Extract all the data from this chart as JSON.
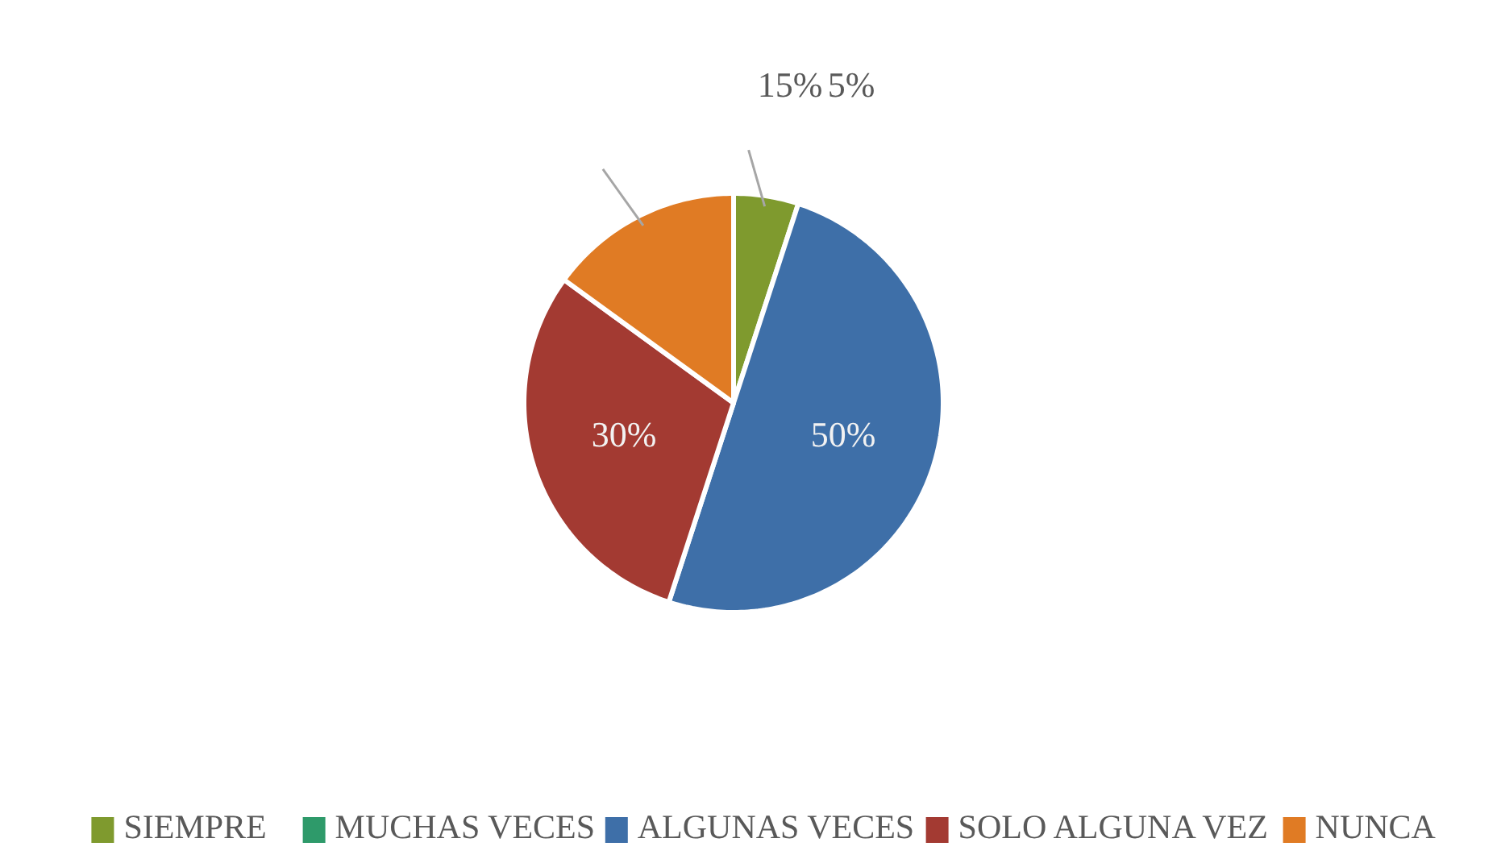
{
  "chart_data": {
    "type": "pie",
    "categories": [
      "SIEMPRE",
      "MUCHAS VECES",
      "ALGUNAS VECES",
      "SOLO ALGUNA VEZ",
      "NUNCA"
    ],
    "values": [
      5,
      0,
      50,
      30,
      15
    ],
    "colors": [
      "#7f9a2e",
      "#2e9a6a",
      "#3e6fa8",
      "#a33a32",
      "#e07b24"
    ],
    "value_labels": [
      "5%",
      null,
      "50%",
      "30%",
      "15%"
    ],
    "legend": "bottom"
  }
}
